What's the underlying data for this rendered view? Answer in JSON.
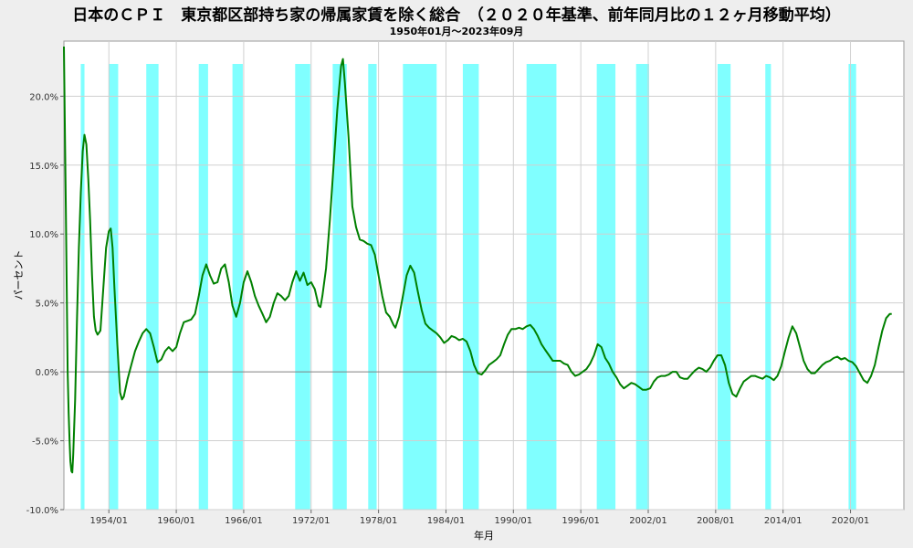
{
  "chart_data": {
    "type": "line",
    "title": "日本のＣＰＩ　東京都区部持ち家の帰属家賃を除く総合　（２０２０年基準、前年同月比の１２ヶ月移動平均）",
    "subtitle": "1950年01月～2023年09月",
    "xlabel": "年月",
    "ylabel": "パーセント",
    "xlim": [
      1950.0,
      2024.75
    ],
    "ylim": [
      -10,
      24
    ],
    "yticks": [
      -10,
      -5,
      0,
      5,
      10,
      15,
      20
    ],
    "ytick_labels": [
      "-10.0%",
      "-5.0%",
      "0.0%",
      "5.0%",
      "10.0%",
      "15.0%",
      "20.0%"
    ],
    "xticks": [
      1954,
      1960,
      1966,
      1972,
      1978,
      1984,
      1990,
      1996,
      2002,
      2008,
      2014,
      2020
    ],
    "xtick_labels": [
      "1954/01",
      "1960/01",
      "1966/01",
      "1972/01",
      "1978/01",
      "1984/01",
      "1990/01",
      "1996/01",
      "2002/01",
      "2008/01",
      "2014/01",
      "2020/01"
    ],
    "grid": true,
    "line_color": "#008000",
    "band_color": "#80ffff",
    "zero_line_color": "#808080",
    "shaded_periods": [
      [
        1951.5,
        1951.83
      ],
      [
        1954.0,
        1954.83
      ],
      [
        1957.33,
        1958.42
      ],
      [
        1962.0,
        1962.83
      ],
      [
        1965.0,
        1965.92
      ],
      [
        1970.58,
        1971.92
      ],
      [
        1973.92,
        1975.17
      ],
      [
        1977.08,
        1977.83
      ],
      [
        1980.17,
        1983.17
      ],
      [
        1985.5,
        1986.92
      ],
      [
        1991.17,
        1993.83
      ],
      [
        1997.42,
        1999.08
      ],
      [
        2000.92,
        2002.08
      ],
      [
        2008.17,
        2009.33
      ],
      [
        2012.42,
        2012.92
      ],
      [
        2019.83,
        2020.5
      ]
    ],
    "series": [
      {
        "points": [
          [
            1950.0,
            23.6
          ],
          [
            1950.08,
            18.0
          ],
          [
            1950.17,
            12.0
          ],
          [
            1950.25,
            6.0
          ],
          [
            1950.33,
            0.0
          ],
          [
            1950.42,
            -3.0
          ],
          [
            1950.5,
            -5.0
          ],
          [
            1950.58,
            -6.5
          ],
          [
            1950.67,
            -7.2
          ],
          [
            1950.75,
            -7.3
          ],
          [
            1950.83,
            -6.0
          ],
          [
            1951.0,
            -2.0
          ],
          [
            1951.17,
            4.0
          ],
          [
            1951.33,
            9.0
          ],
          [
            1951.5,
            13.0
          ],
          [
            1951.67,
            16.0
          ],
          [
            1951.83,
            17.2
          ],
          [
            1952.0,
            16.5
          ],
          [
            1952.17,
            14.0
          ],
          [
            1952.33,
            11.0
          ],
          [
            1952.5,
            7.0
          ],
          [
            1952.67,
            4.0
          ],
          [
            1952.83,
            3.0
          ],
          [
            1953.0,
            2.7
          ],
          [
            1953.25,
            3.0
          ],
          [
            1953.5,
            6.0
          ],
          [
            1953.75,
            9.0
          ],
          [
            1954.0,
            10.2
          ],
          [
            1954.17,
            10.4
          ],
          [
            1954.33,
            9.0
          ],
          [
            1954.5,
            6.0
          ],
          [
            1954.75,
            2.0
          ],
          [
            1955.0,
            -1.5
          ],
          [
            1955.17,
            -2.0
          ],
          [
            1955.33,
            -1.8
          ],
          [
            1955.67,
            -0.5
          ],
          [
            1956.0,
            0.5
          ],
          [
            1956.33,
            1.5
          ],
          [
            1956.67,
            2.2
          ],
          [
            1957.0,
            2.8
          ],
          [
            1957.33,
            3.1
          ],
          [
            1957.67,
            2.8
          ],
          [
            1958.0,
            1.8
          ],
          [
            1958.33,
            0.7
          ],
          [
            1958.67,
            0.9
          ],
          [
            1959.0,
            1.5
          ],
          [
            1959.33,
            1.8
          ],
          [
            1959.67,
            1.5
          ],
          [
            1960.0,
            1.8
          ],
          [
            1960.33,
            2.8
          ],
          [
            1960.67,
            3.6
          ],
          [
            1961.0,
            3.7
          ],
          [
            1961.33,
            3.8
          ],
          [
            1961.67,
            4.2
          ],
          [
            1962.0,
            5.5
          ],
          [
            1962.33,
            7.0
          ],
          [
            1962.67,
            7.8
          ],
          [
            1963.0,
            7.0
          ],
          [
            1963.33,
            6.4
          ],
          [
            1963.67,
            6.5
          ],
          [
            1964.0,
            7.5
          ],
          [
            1964.33,
            7.8
          ],
          [
            1964.67,
            6.5
          ],
          [
            1965.0,
            4.8
          ],
          [
            1965.33,
            4.0
          ],
          [
            1965.67,
            5.0
          ],
          [
            1966.0,
            6.5
          ],
          [
            1966.33,
            7.3
          ],
          [
            1966.67,
            6.5
          ],
          [
            1967.0,
            5.5
          ],
          [
            1967.33,
            4.8
          ],
          [
            1967.67,
            4.2
          ],
          [
            1968.0,
            3.6
          ],
          [
            1968.33,
            4.0
          ],
          [
            1968.67,
            5.0
          ],
          [
            1969.0,
            5.7
          ],
          [
            1969.33,
            5.5
          ],
          [
            1969.67,
            5.2
          ],
          [
            1970.0,
            5.5
          ],
          [
            1970.33,
            6.5
          ],
          [
            1970.67,
            7.3
          ],
          [
            1971.0,
            6.6
          ],
          [
            1971.33,
            7.2
          ],
          [
            1971.67,
            6.3
          ],
          [
            1972.0,
            6.5
          ],
          [
            1972.33,
            6.0
          ],
          [
            1972.67,
            4.8
          ],
          [
            1972.83,
            4.7
          ],
          [
            1973.0,
            5.5
          ],
          [
            1973.33,
            7.5
          ],
          [
            1973.67,
            11.0
          ],
          [
            1974.0,
            15.0
          ],
          [
            1974.33,
            19.0
          ],
          [
            1974.67,
            22.2
          ],
          [
            1974.83,
            22.7
          ],
          [
            1975.0,
            21.0
          ],
          [
            1975.33,
            17.0
          ],
          [
            1975.67,
            12.0
          ],
          [
            1976.0,
            10.5
          ],
          [
            1976.33,
            9.6
          ],
          [
            1976.67,
            9.5
          ],
          [
            1977.0,
            9.3
          ],
          [
            1977.33,
            9.2
          ],
          [
            1977.67,
            8.5
          ],
          [
            1978.0,
            7.0
          ],
          [
            1978.33,
            5.5
          ],
          [
            1978.67,
            4.3
          ],
          [
            1979.0,
            4.0
          ],
          [
            1979.33,
            3.4
          ],
          [
            1979.5,
            3.2
          ],
          [
            1979.83,
            4.0
          ],
          [
            1980.17,
            5.5
          ],
          [
            1980.5,
            7.0
          ],
          [
            1980.83,
            7.7
          ],
          [
            1981.17,
            7.2
          ],
          [
            1981.5,
            5.8
          ],
          [
            1981.83,
            4.5
          ],
          [
            1982.17,
            3.5
          ],
          [
            1982.5,
            3.2
          ],
          [
            1982.83,
            3.0
          ],
          [
            1983.17,
            2.8
          ],
          [
            1983.5,
            2.5
          ],
          [
            1983.83,
            2.1
          ],
          [
            1984.17,
            2.3
          ],
          [
            1984.5,
            2.6
          ],
          [
            1984.83,
            2.5
          ],
          [
            1985.17,
            2.3
          ],
          [
            1985.5,
            2.4
          ],
          [
            1985.83,
            2.2
          ],
          [
            1986.17,
            1.5
          ],
          [
            1986.5,
            0.5
          ],
          [
            1986.83,
            -0.1
          ],
          [
            1987.17,
            -0.2
          ],
          [
            1987.5,
            0.1
          ],
          [
            1987.83,
            0.5
          ],
          [
            1988.17,
            0.7
          ],
          [
            1988.5,
            0.9
          ],
          [
            1988.83,
            1.2
          ],
          [
            1989.17,
            2.0
          ],
          [
            1989.5,
            2.7
          ],
          [
            1989.83,
            3.1
          ],
          [
            1990.17,
            3.1
          ],
          [
            1990.5,
            3.2
          ],
          [
            1990.83,
            3.1
          ],
          [
            1991.17,
            3.3
          ],
          [
            1991.5,
            3.4
          ],
          [
            1991.83,
            3.1
          ],
          [
            1992.17,
            2.6
          ],
          [
            1992.5,
            2.0
          ],
          [
            1992.83,
            1.6
          ],
          [
            1993.17,
            1.2
          ],
          [
            1993.5,
            0.8
          ],
          [
            1993.83,
            0.8
          ],
          [
            1994.17,
            0.8
          ],
          [
            1994.5,
            0.6
          ],
          [
            1994.83,
            0.5
          ],
          [
            1995.17,
            0.0
          ],
          [
            1995.5,
            -0.3
          ],
          [
            1995.83,
            -0.2
          ],
          [
            1996.17,
            0.0
          ],
          [
            1996.5,
            0.2
          ],
          [
            1996.83,
            0.6
          ],
          [
            1997.17,
            1.2
          ],
          [
            1997.5,
            2.0
          ],
          [
            1997.83,
            1.8
          ],
          [
            1998.17,
            1.0
          ],
          [
            1998.5,
            0.6
          ],
          [
            1998.83,
            0.0
          ],
          [
            1999.17,
            -0.4
          ],
          [
            1999.5,
            -0.9
          ],
          [
            1999.83,
            -1.2
          ],
          [
            2000.17,
            -1.0
          ],
          [
            2000.5,
            -0.8
          ],
          [
            2000.83,
            -0.9
          ],
          [
            2001.17,
            -1.1
          ],
          [
            2001.5,
            -1.3
          ],
          [
            2001.83,
            -1.3
          ],
          [
            2002.17,
            -1.2
          ],
          [
            2002.5,
            -0.7
          ],
          [
            2002.83,
            -0.4
          ],
          [
            2003.17,
            -0.3
          ],
          [
            2003.5,
            -0.3
          ],
          [
            2003.83,
            -0.2
          ],
          [
            2004.17,
            0.0
          ],
          [
            2004.5,
            0.0
          ],
          [
            2004.83,
            -0.4
          ],
          [
            2005.17,
            -0.5
          ],
          [
            2005.5,
            -0.5
          ],
          [
            2005.83,
            -0.2
          ],
          [
            2006.17,
            0.1
          ],
          [
            2006.5,
            0.3
          ],
          [
            2006.83,
            0.2
          ],
          [
            2007.17,
            0.0
          ],
          [
            2007.5,
            0.3
          ],
          [
            2007.83,
            0.8
          ],
          [
            2008.17,
            1.2
          ],
          [
            2008.5,
            1.2
          ],
          [
            2008.83,
            0.5
          ],
          [
            2009.17,
            -0.8
          ],
          [
            2009.5,
            -1.6
          ],
          [
            2009.83,
            -1.8
          ],
          [
            2010.17,
            -1.2
          ],
          [
            2010.5,
            -0.7
          ],
          [
            2010.83,
            -0.5
          ],
          [
            2011.17,
            -0.3
          ],
          [
            2011.5,
            -0.3
          ],
          [
            2011.83,
            -0.4
          ],
          [
            2012.17,
            -0.5
          ],
          [
            2012.5,
            -0.3
          ],
          [
            2012.83,
            -0.4
          ],
          [
            2013.17,
            -0.6
          ],
          [
            2013.5,
            -0.3
          ],
          [
            2013.83,
            0.4
          ],
          [
            2014.17,
            1.5
          ],
          [
            2014.5,
            2.5
          ],
          [
            2014.83,
            3.3
          ],
          [
            2015.17,
            2.8
          ],
          [
            2015.5,
            1.8
          ],
          [
            2015.83,
            0.8
          ],
          [
            2016.17,
            0.2
          ],
          [
            2016.5,
            -0.1
          ],
          [
            2016.83,
            -0.1
          ],
          [
            2017.17,
            0.2
          ],
          [
            2017.5,
            0.5
          ],
          [
            2017.83,
            0.7
          ],
          [
            2018.17,
            0.8
          ],
          [
            2018.5,
            1.0
          ],
          [
            2018.83,
            1.1
          ],
          [
            2019.17,
            0.9
          ],
          [
            2019.5,
            1.0
          ],
          [
            2019.83,
            0.8
          ],
          [
            2020.17,
            0.7
          ],
          [
            2020.5,
            0.4
          ],
          [
            2020.83,
            -0.1
          ],
          [
            2021.17,
            -0.6
          ],
          [
            2021.5,
            -0.8
          ],
          [
            2021.83,
            -0.3
          ],
          [
            2022.17,
            0.5
          ],
          [
            2022.5,
            1.8
          ],
          [
            2022.83,
            3.0
          ],
          [
            2023.17,
            3.9
          ],
          [
            2023.5,
            4.2
          ],
          [
            2023.67,
            4.2
          ]
        ]
      }
    ]
  }
}
